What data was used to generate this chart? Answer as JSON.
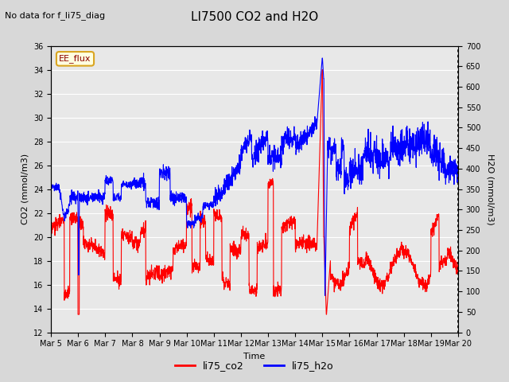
{
  "title": "LI7500 CO2 and H2O",
  "subtitle": "No data for f_li75_diag",
  "xlabel": "Time",
  "ylabel_left": "CO2 (mmol/m3)",
  "ylabel_right": "H2O (mmol/m3)",
  "ylim_left": [
    12,
    36
  ],
  "ylim_right": [
    0,
    700
  ],
  "yticks_left": [
    12,
    14,
    16,
    18,
    20,
    22,
    24,
    26,
    28,
    30,
    32,
    34,
    36
  ],
  "yticks_right": [
    0,
    50,
    100,
    150,
    200,
    250,
    300,
    350,
    400,
    450,
    500,
    550,
    600,
    650,
    700
  ],
  "xtick_labels": [
    "Mar 5",
    "Mar 6",
    "Mar 7",
    "Mar 8",
    "Mar 9",
    "Mar 10",
    "Mar 11",
    "Mar 12",
    "Mar 13",
    "Mar 14",
    "Mar 15",
    "Mar 16",
    "Mar 17",
    "Mar 18",
    "Mar 19",
    "Mar 20"
  ],
  "legend_labels": [
    "li75_co2",
    "li75_h2o"
  ],
  "legend_colors": [
    "red",
    "blue"
  ],
  "annotation_label": "EE_flux",
  "co2_color": "red",
  "h2o_color": "blue",
  "background_color": "#d8d8d8",
  "plot_bg_color": "#e8e8e8",
  "grid_color": "#ffffff",
  "linewidth": 0.8,
  "title_fontsize": 11,
  "label_fontsize": 8,
  "tick_fontsize": 8
}
